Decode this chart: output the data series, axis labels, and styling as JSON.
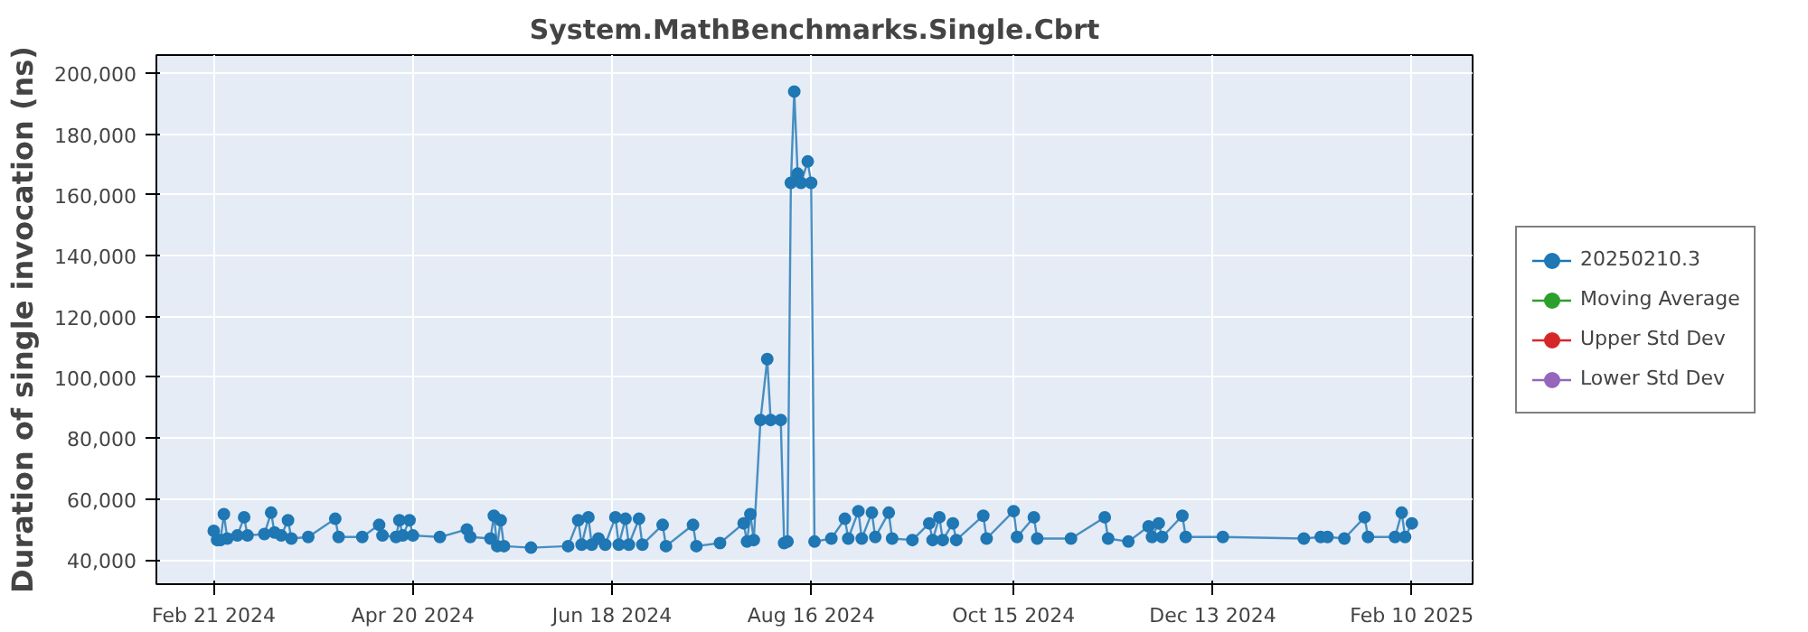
{
  "chart_data": {
    "type": "line",
    "title": "System.MathBenchmarks.Single.Cbrt",
    "ylabel": "Duration of single invocation (ns)",
    "x": [
      "2024-02-21",
      "2024-02-22",
      "2024-02-23",
      "2024-02-24",
      "2024-02-25",
      "2024-02-28",
      "2024-03-01",
      "2024-03-02",
      "2024-03-07",
      "2024-03-09",
      "2024-03-10",
      "2024-03-12",
      "2024-03-14",
      "2024-03-15",
      "2024-03-20",
      "2024-03-28",
      "2024-03-29",
      "2024-04-05",
      "2024-04-10",
      "2024-04-11",
      "2024-04-15",
      "2024-04-16",
      "2024-04-17",
      "2024-04-19",
      "2024-04-20",
      "2024-04-28",
      "2024-05-06",
      "2024-05-07",
      "2024-05-13",
      "2024-05-14",
      "2024-05-15",
      "2024-05-16",
      "2024-05-17",
      "2024-05-25",
      "2024-06-05",
      "2024-06-08",
      "2024-06-09",
      "2024-06-11",
      "2024-06-12",
      "2024-06-14",
      "2024-06-16",
      "2024-06-19",
      "2024-06-20",
      "2024-06-22",
      "2024-06-23",
      "2024-06-26",
      "2024-06-27",
      "2024-07-03",
      "2024-07-04",
      "2024-07-12",
      "2024-07-13",
      "2024-07-20",
      "2024-07-27",
      "2024-07-28",
      "2024-07-29",
      "2024-07-30",
      "2024-08-01",
      "2024-08-03",
      "2024-08-04",
      "2024-08-07",
      "2024-08-08",
      "2024-08-09",
      "2024-08-10",
      "2024-08-11",
      "2024-08-12",
      "2024-08-13",
      "2024-08-15",
      "2024-08-16",
      "2024-08-17",
      "2024-08-22",
      "2024-08-26",
      "2024-08-27",
      "2024-08-30",
      "2024-08-31",
      "2024-09-03",
      "2024-09-04",
      "2024-09-08",
      "2024-09-09",
      "2024-09-15",
      "2024-09-20",
      "2024-09-21",
      "2024-09-23",
      "2024-09-24",
      "2024-09-27",
      "2024-09-28",
      "2024-10-06",
      "2024-10-07",
      "2024-10-15",
      "2024-10-16",
      "2024-10-21",
      "2024-10-22",
      "2024-11-01",
      "2024-11-11",
      "2024-11-12",
      "2024-11-18",
      "2024-11-24",
      "2024-11-25",
      "2024-11-27",
      "2024-11-28",
      "2024-12-04",
      "2024-12-05",
      "2024-12-16",
      "2025-01-09",
      "2025-01-14",
      "2025-01-16",
      "2025-01-21",
      "2025-01-27",
      "2025-01-28",
      "2025-02-05",
      "2025-02-07",
      "2025-02-08",
      "2025-02-10"
    ],
    "series": [
      {
        "name": "20250210.3",
        "color": "#1f77b4",
        "values": [
          49500,
          46500,
          46500,
          55000,
          47000,
          48000,
          54000,
          48000,
          48500,
          55500,
          49000,
          48000,
          53000,
          47000,
          47500,
          53500,
          47500,
          47500,
          51500,
          48000,
          47500,
          53000,
          48000,
          53000,
          48000,
          47500,
          50000,
          47500,
          47000,
          54500,
          44500,
          53000,
          44500,
          44000,
          44500,
          53000,
          45000,
          54000,
          45000,
          47000,
          45000,
          54000,
          45000,
          53500,
          45000,
          53500,
          45000,
          51500,
          44500,
          51500,
          44500,
          45500,
          52000,
          46000,
          55000,
          46500,
          86000,
          106000,
          86000,
          86000,
          45500,
          46000,
          164000,
          194000,
          167000,
          164000,
          171000,
          164000,
          46000,
          47000,
          53500,
          47000,
          56000,
          47000,
          55500,
          47500,
          55500,
          47000,
          46500,
          52000,
          46500,
          54000,
          46500,
          52000,
          46500,
          54500,
          47000,
          56000,
          47500,
          54000,
          47000,
          47000,
          54000,
          47000,
          46000,
          51000,
          47500,
          52000,
          47500,
          54500,
          47500,
          47500,
          47000,
          47500,
          47500,
          47000,
          54000,
          47500,
          47500,
          55500,
          47500,
          52000
        ]
      },
      {
        "name": "Moving Average",
        "color": "#2ca02c",
        "values": [
          null,
          null,
          null,
          null,
          null,
          null,
          null,
          null,
          null,
          null,
          null,
          null,
          null,
          null,
          null,
          null,
          null,
          null,
          null,
          null,
          null,
          null,
          null,
          null,
          null,
          null,
          null,
          null,
          null,
          null,
          null,
          null,
          null,
          null,
          null,
          null,
          null,
          null,
          null,
          null,
          null,
          null,
          null,
          null,
          null,
          null,
          null,
          null,
          null,
          null,
          null,
          null,
          null,
          null,
          null,
          null,
          null,
          null,
          null,
          null,
          null,
          null,
          null,
          null,
          null,
          null,
          null,
          null,
          null,
          null,
          null,
          null,
          null,
          null,
          null,
          null,
          null,
          null,
          null,
          null,
          null,
          null,
          null,
          null,
          null,
          null,
          null,
          null,
          null,
          null,
          null,
          null,
          null,
          null,
          null,
          null,
          null,
          null,
          null,
          null,
          null,
          null,
          null,
          null,
          null,
          null,
          null,
          null,
          null,
          null,
          null,
          null
        ]
      },
      {
        "name": "Upper Std Dev",
        "color": "#d62728",
        "values": [
          null,
          null,
          null,
          null,
          null,
          null,
          null,
          null,
          null,
          null,
          null,
          null,
          null,
          null,
          null,
          null,
          null,
          null,
          null,
          null,
          null,
          null,
          null,
          null,
          null,
          null,
          null,
          null,
          null,
          null,
          null,
          null,
          null,
          null,
          null,
          null,
          null,
          null,
          null,
          null,
          null,
          null,
          null,
          null,
          null,
          null,
          null,
          null,
          null,
          null,
          null,
          null,
          null,
          null,
          null,
          null,
          null,
          null,
          null,
          null,
          null,
          null,
          null,
          null,
          null,
          null,
          null,
          null,
          null,
          null,
          null,
          null,
          null,
          null,
          null,
          null,
          null,
          null,
          null,
          null,
          null,
          null,
          null,
          null,
          null,
          null,
          null,
          null,
          null,
          null,
          null,
          null,
          null,
          null,
          null,
          null,
          null,
          null,
          null,
          null,
          null,
          null,
          null,
          null,
          null,
          null,
          null,
          null,
          null,
          null,
          null,
          null
        ]
      },
      {
        "name": "Lower Std Dev",
        "color": "#9467bd",
        "values": [
          null,
          null,
          null,
          null,
          null,
          null,
          null,
          null,
          null,
          null,
          null,
          null,
          null,
          null,
          null,
          null,
          null,
          null,
          null,
          null,
          null,
          null,
          null,
          null,
          null,
          null,
          null,
          null,
          null,
          null,
          null,
          null,
          null,
          null,
          null,
          null,
          null,
          null,
          null,
          null,
          null,
          null,
          null,
          null,
          null,
          null,
          null,
          null,
          null,
          null,
          null,
          null,
          null,
          null,
          null,
          null,
          null,
          null,
          null,
          null,
          null,
          null,
          null,
          null,
          null,
          null,
          null,
          null,
          null,
          null,
          null,
          null,
          null,
          null,
          null,
          null,
          null,
          null,
          null,
          null,
          null,
          null,
          null,
          null,
          null,
          null,
          null,
          null,
          null,
          null,
          null,
          null,
          null,
          null,
          null,
          null,
          null,
          null,
          null,
          null,
          null,
          null,
          null,
          null,
          null,
          null,
          null,
          null,
          null,
          null,
          null,
          null
        ]
      }
    ],
    "xlim": [
      "2024-02-04",
      "2025-02-28"
    ],
    "xticks": [
      {
        "value": "2024-02-21",
        "label": "Feb 21 2024"
      },
      {
        "value": "2024-04-20",
        "label": "Apr 20 2024"
      },
      {
        "value": "2024-06-18",
        "label": "Jun 18 2024"
      },
      {
        "value": "2024-08-16",
        "label": "Aug 16 2024"
      },
      {
        "value": "2024-10-15",
        "label": "Oct 15 2024"
      },
      {
        "value": "2024-12-13",
        "label": "Dec 13 2024"
      },
      {
        "value": "2025-02-10",
        "label": "Feb 10 2025"
      }
    ],
    "ylim": [
      32000,
      206000
    ],
    "yticks": [
      {
        "value": 40000,
        "label": "40,000"
      },
      {
        "value": 60000,
        "label": "60,000"
      },
      {
        "value": 80000,
        "label": "80,000"
      },
      {
        "value": 100000,
        "label": "100,000"
      },
      {
        "value": 120000,
        "label": "120,000"
      },
      {
        "value": 140000,
        "label": "140,000"
      },
      {
        "value": 160000,
        "label": "160,000"
      },
      {
        "value": 180000,
        "label": "180,000"
      },
      {
        "value": 200000,
        "label": "200,000"
      }
    ],
    "grid": true,
    "legend": "right",
    "marker": "circle",
    "line_style": "solid"
  }
}
